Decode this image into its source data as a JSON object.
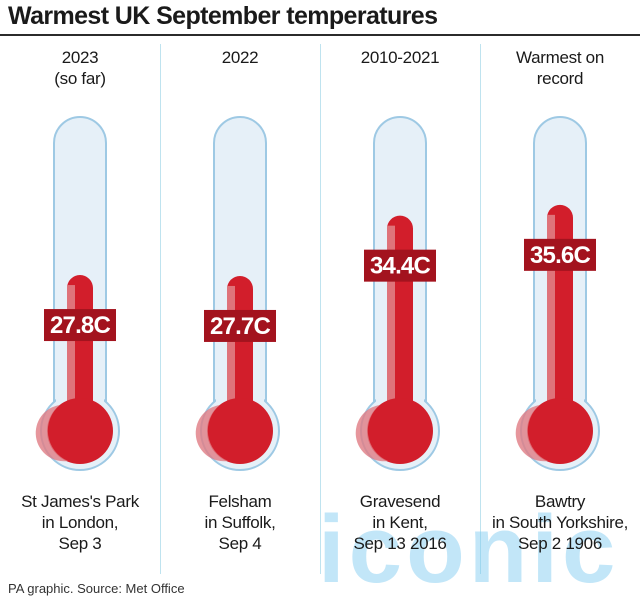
{
  "title": "Warmest UK September temperatures",
  "footer": "PA graphic. Source: Met Office",
  "watermark": "iconic",
  "colors": {
    "mercury": "#d21e2b",
    "mercury_light": "#e07c83",
    "glass": "#e6f0f8",
    "glass_stroke": "#9ec9e4",
    "label_bg": "#a3131e"
  },
  "columns": [
    {
      "heading": [
        "2023",
        "(so far)"
      ],
      "place": [
        "St James's Park",
        "in London,",
        "Sep 3"
      ]
    },
    {
      "heading": [
        "2022"
      ],
      "place": [
        "Felsham",
        "in Suffolk,",
        "Sep 4"
      ]
    },
    {
      "heading": [
        "2010-2021"
      ],
      "place": [
        "Gravesend",
        "in Kent,",
        "Sep 13 2016"
      ]
    },
    {
      "heading": [
        "Warmest on",
        "record"
      ],
      "place": [
        "Bawtry",
        "in South Yorkshire,",
        "Sep 2 1906"
      ]
    }
  ],
  "chart_data": {
    "type": "bar",
    "title": "Warmest UK September temperatures",
    "categories": [
      "2023 (so far)",
      "2022",
      "2010-2021",
      "Warmest on record"
    ],
    "values": [
      27.8,
      27.7,
      34.4,
      35.6
    ],
    "value_labels": [
      "27.8C",
      "27.7C",
      "34.4C",
      "35.6C"
    ],
    "xlabel": "",
    "ylabel": ""
  }
}
